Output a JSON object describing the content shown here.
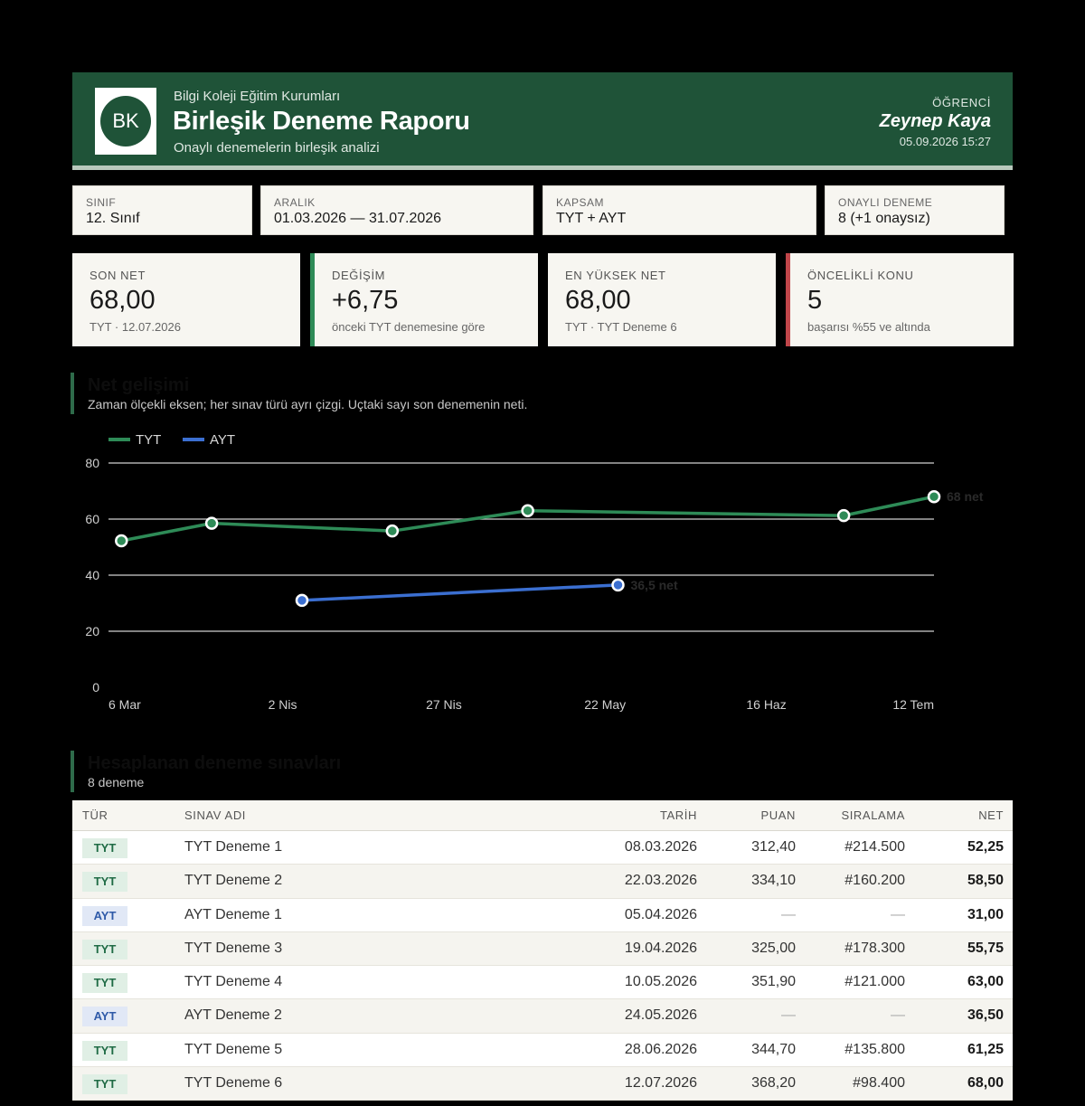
{
  "header": {
    "logo_text": "BK",
    "org": "Bilgi Koleji Eğitim Kurumları",
    "title": "Birleşik Deneme Raporu",
    "subtitle": "Onaylı denemelerin birleşik analizi",
    "student_label": "ÖĞRENCİ",
    "student_name": "Zeynep Kaya",
    "date": "05.09.2026 15:27"
  },
  "meta": [
    {
      "label": "SINIF",
      "value": "12. Sınıf"
    },
    {
      "label": "ARALIK",
      "value": "01.03.2026 — 31.07.2026"
    },
    {
      "label": "KAPSAM",
      "value": "TYT + AYT"
    },
    {
      "label": "ONAYLI DENEME",
      "value": "8  (+1 onaysız)"
    }
  ],
  "stats": [
    {
      "label": "SON NET",
      "value": "68,00",
      "sub": "TYT · 12.07.2026"
    },
    {
      "label": "DEĞİŞİM",
      "value": "+6,75",
      "sub": "önceki TYT denemesine göre"
    },
    {
      "label": "EN YÜKSEK NET",
      "value": "68,00",
      "sub": "TYT · TYT Deneme 6"
    },
    {
      "label": "ÖNCELİKLİ KONU",
      "value": "5",
      "sub": "başarısı %55 ve altında"
    }
  ],
  "chart_section": {
    "title": "Net gelişimi",
    "subtitle": "Zaman ölçekli eksen; her sınav türü ayrı çizgi. Uçtaki sayı son denemenin neti."
  },
  "chart_data": {
    "type": "line",
    "ylim": [
      0,
      80
    ],
    "yticks": [
      "0",
      "20",
      "40",
      "60",
      "80"
    ],
    "xlim": [
      "2026-03-06",
      "2026-07-12"
    ],
    "xticks": [
      {
        "date": "2026-03-06",
        "label": "6 Mar"
      },
      {
        "date": "2026-04-02",
        "label": "2 Nis"
      },
      {
        "date": "2026-04-27",
        "label": "27 Nis"
      },
      {
        "date": "2026-05-22",
        "label": "22 May"
      },
      {
        "date": "2026-06-16",
        "label": "16 Haz"
      },
      {
        "date": "2026-07-12",
        "label": "12 Tem"
      }
    ],
    "grid": true,
    "legend_position": "top-left",
    "series": [
      {
        "name": "TYT",
        "color": "#2e8b57",
        "x": [
          "2026-03-08",
          "2026-03-22",
          "2026-04-19",
          "2026-05-10",
          "2026-06-28",
          "2026-07-12"
        ],
        "y": [
          52.25,
          58.5,
          55.75,
          63.0,
          61.25,
          68.0
        ],
        "end_label": "68 net"
      },
      {
        "name": "AYT",
        "color": "#3b6fd1",
        "x": [
          "2026-04-05",
          "2026-05-24"
        ],
        "y": [
          31.0,
          36.5
        ],
        "end_label": "36,5 net"
      }
    ]
  },
  "table_section": {
    "title": "Hesaplanan deneme sınavları",
    "subtitle": "8 deneme"
  },
  "table": {
    "headers": {
      "type": "TÜR",
      "name": "SINAV ADI",
      "date": "TARİH",
      "score": "PUAN",
      "rank": "SIRALAMA",
      "net": "NET"
    },
    "rows": [
      {
        "type": "TYT",
        "name": "TYT Deneme 1",
        "date": "08.03.2026",
        "score": "312,40",
        "rank": "#214.500",
        "net": "52,25"
      },
      {
        "type": "TYT",
        "name": "TYT Deneme 2",
        "date": "22.03.2026",
        "score": "334,10",
        "rank": "#160.200",
        "net": "58,50"
      },
      {
        "type": "AYT",
        "name": "AYT Deneme 1",
        "date": "05.04.2026",
        "score": "—",
        "rank": "—",
        "net": "31,00"
      },
      {
        "type": "TYT",
        "name": "TYT Deneme 3",
        "date": "19.04.2026",
        "score": "325,00",
        "rank": "#178.300",
        "net": "55,75"
      },
      {
        "type": "TYT",
        "name": "TYT Deneme 4",
        "date": "10.05.2026",
        "score": "351,90",
        "rank": "#121.000",
        "net": "63,00"
      },
      {
        "type": "AYT",
        "name": "AYT Deneme 2",
        "date": "24.05.2026",
        "score": "—",
        "rank": "—",
        "net": "36,50"
      },
      {
        "type": "TYT",
        "name": "TYT Deneme 5",
        "date": "28.06.2026",
        "score": "344,70",
        "rank": "#135.800",
        "net": "61,25"
      },
      {
        "type": "TYT",
        "name": "TYT Deneme 6",
        "date": "12.07.2026",
        "score": "368,20",
        "rank": "#98.400",
        "net": "68,00"
      }
    ]
  }
}
